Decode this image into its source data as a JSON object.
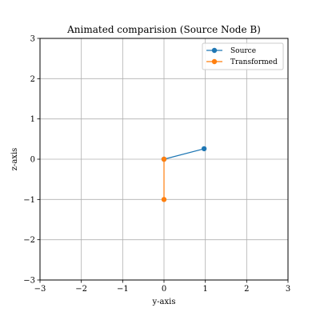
{
  "chart_data": {
    "type": "line",
    "title": "Animated comparision (Source Node B)",
    "xlabel": "y-axis",
    "ylabel": "z-axis",
    "xlim": [
      -3,
      3
    ],
    "ylim": [
      -3,
      3
    ],
    "xticks": [
      -3,
      -2,
      -1,
      0,
      1,
      2,
      3
    ],
    "yticks": [
      -3,
      -2,
      -1,
      0,
      1,
      2,
      3
    ],
    "xtick_labels": [
      "−3",
      "−2",
      "−1",
      "0",
      "1",
      "2",
      "3"
    ],
    "ytick_labels": [
      "−3",
      "−2",
      "−1",
      "0",
      "1",
      "2",
      "3"
    ],
    "grid": true,
    "legend_position": "top-right",
    "series": [
      {
        "name": "Source",
        "color": "#1f77b4",
        "x": [
          0,
          0.97
        ],
        "y": [
          0,
          0.26
        ]
      },
      {
        "name": "Transformed",
        "color": "#ff7f0e",
        "x": [
          0,
          0
        ],
        "y": [
          0,
          -1
        ]
      }
    ]
  }
}
